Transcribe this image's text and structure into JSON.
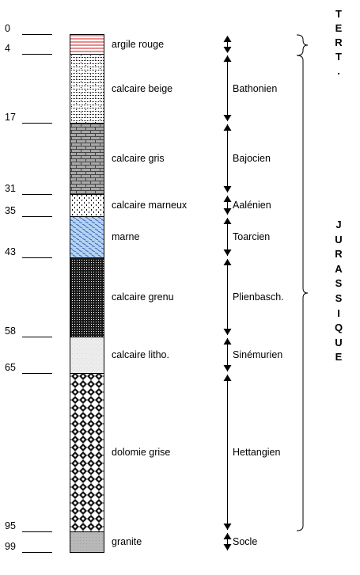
{
  "depths": [
    "0",
    "4",
    "17",
    "31",
    "35",
    "43",
    "58",
    "65",
    "95",
    "99"
  ],
  "layers": [
    {
      "label": "argile rouge"
    },
    {
      "label": "calcaire beige"
    },
    {
      "label": "calcaire gris"
    },
    {
      "label": "calcaire marneux"
    },
    {
      "label": "marne"
    },
    {
      "label": "calcaire grenu"
    },
    {
      "label": "calcaire litho."
    },
    {
      "label": "dolomie grise"
    },
    {
      "label": "granite"
    }
  ],
  "stages": [
    "Bathonien",
    "Bajocien",
    "Aalénien",
    "Toarcien",
    "Plienbasch.",
    "Sinémurien",
    "Hettangien",
    "Socle"
  ],
  "eras": [
    {
      "letters": [
        "T",
        "E",
        "R",
        "T",
        "."
      ]
    },
    {
      "letters": [
        "J",
        "U",
        "R",
        "A",
        "S",
        "S",
        "I",
        "Q",
        "U",
        "E"
      ]
    }
  ]
}
